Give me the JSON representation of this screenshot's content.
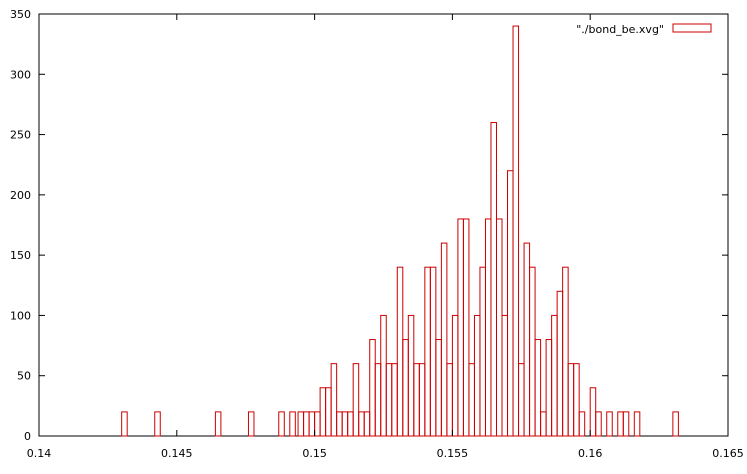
{
  "chart_data": {
    "type": "bar",
    "style": "histogram-steps",
    "xlim": [
      0.14,
      0.165
    ],
    "ylim": [
      0,
      350
    ],
    "x_ticks": [
      "0.14",
      "0.145",
      "0.15",
      "0.155",
      "0.16",
      "0.165"
    ],
    "y_ticks": [
      "0",
      "50",
      "100",
      "150",
      "200",
      "250",
      "300",
      "350"
    ],
    "grid": false,
    "legend_position": "top-right",
    "series": [
      {
        "name": "\"./bond_be.xvg\"",
        "color": "#cc0000",
        "x": [
          0.1431,
          0.1443,
          0.1465,
          0.1477,
          0.1488,
          0.1492,
          0.1495,
          0.1497,
          0.1499,
          0.1501,
          0.1503,
          0.1505,
          0.1507,
          0.1509,
          0.1511,
          0.1513,
          0.1515,
          0.1517,
          0.1519,
          0.1521,
          0.1523,
          0.1525,
          0.1527,
          0.1529,
          0.1531,
          0.1533,
          0.1535,
          0.1537,
          0.1539,
          0.1541,
          0.1543,
          0.1545,
          0.1547,
          0.1549,
          0.1551,
          0.1553,
          0.1555,
          0.1557,
          0.1559,
          0.1561,
          0.1563,
          0.1565,
          0.1567,
          0.1569,
          0.1571,
          0.1573,
          0.1575,
          0.1577,
          0.1579,
          0.1581,
          0.1583,
          0.1585,
          0.1587,
          0.1589,
          0.1591,
          0.1593,
          0.1595,
          0.1597,
          0.1599,
          0.1601,
          0.1603,
          0.1607,
          0.1611,
          0.1613,
          0.1617,
          0.1631
        ],
        "values": [
          20,
          20,
          20,
          20,
          20,
          20,
          20,
          20,
          20,
          20,
          40,
          40,
          60,
          20,
          20,
          20,
          60,
          20,
          20,
          80,
          60,
          100,
          60,
          60,
          140,
          80,
          100,
          60,
          60,
          140,
          140,
          80,
          160,
          60,
          100,
          180,
          180,
          60,
          100,
          140,
          180,
          260,
          180,
          100,
          220,
          340,
          60,
          160,
          140,
          80,
          20,
          80,
          100,
          120,
          140,
          60,
          60,
          20,
          0,
          40,
          20,
          20,
          20,
          20,
          20,
          20
        ]
      }
    ]
  }
}
